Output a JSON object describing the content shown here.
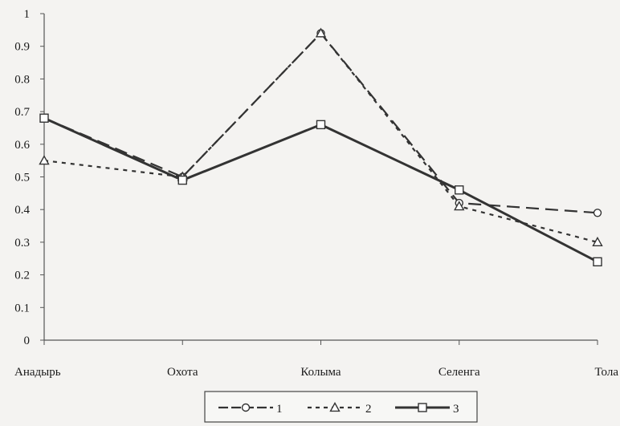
{
  "chart_data": {
    "type": "line",
    "categories": [
      "Анадырь",
      "Охота",
      "Колыма",
      "Селенга",
      "Тола"
    ],
    "ylim": [
      0,
      1
    ],
    "yticks": [
      "0",
      "0.1",
      "0.2",
      "0.3",
      "0.4",
      "0.5",
      "0.6",
      "0.7",
      "0.8",
      "0.9",
      "1"
    ],
    "grid": false,
    "legend_position": "bottom-center",
    "series": [
      {
        "name": "1",
        "values": [
          0.68,
          0.5,
          0.94,
          0.42,
          0.39
        ],
        "marker": "circle",
        "line": "long-dash",
        "color": "#333333"
      },
      {
        "name": "2",
        "values": [
          0.55,
          0.5,
          0.94,
          0.41,
          0.3
        ],
        "marker": "triangle",
        "line": "short-dash",
        "color": "#333333"
      },
      {
        "name": "3",
        "values": [
          0.68,
          0.49,
          0.66,
          0.46,
          0.24
        ],
        "marker": "square",
        "line": "solid-thick",
        "color": "#333333"
      }
    ]
  }
}
